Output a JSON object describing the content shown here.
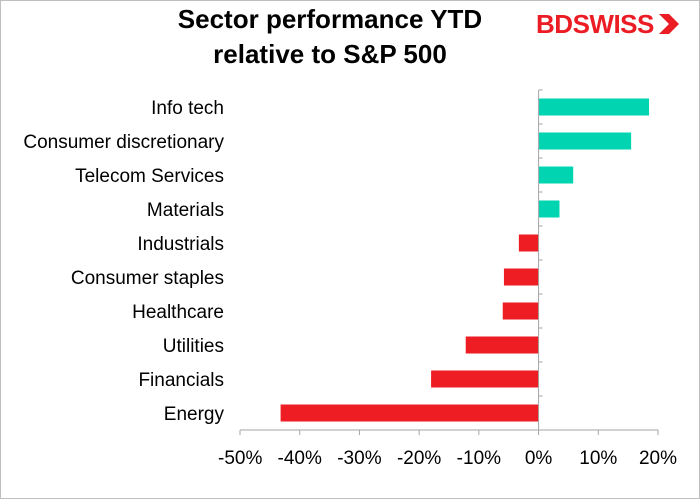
{
  "brand": {
    "logo_text_a": "BD",
    "logo_text_b": "SWISS",
    "color": "#ec1c24"
  },
  "chart_data": {
    "type": "bar",
    "orientation": "horizontal",
    "title_line1": "Sector performance YTD",
    "title_line2": "relative to S&P 500",
    "categories": [
      "Info tech",
      "Consumer discretionary",
      "Telecom Services",
      "Materials",
      "Industrials",
      "Consumer staples",
      "Healthcare",
      "Utilities",
      "Financials",
      "Energy"
    ],
    "values": [
      18.5,
      15.5,
      5.8,
      3.5,
      -3.3,
      -5.8,
      -6.0,
      -12.2,
      -18.0,
      -43.2
    ],
    "xlim": [
      -50,
      20
    ],
    "xticks": [
      -50,
      -40,
      -30,
      -20,
      -10,
      0,
      10,
      20
    ],
    "xtick_labels": [
      "-50%",
      "-40%",
      "-30%",
      "-20%",
      "-10%",
      "0%",
      "10%",
      "20%"
    ],
    "positive_color": "#00d4b0",
    "negative_color": "#ee1d23",
    "grid": false,
    "legend": "none"
  }
}
